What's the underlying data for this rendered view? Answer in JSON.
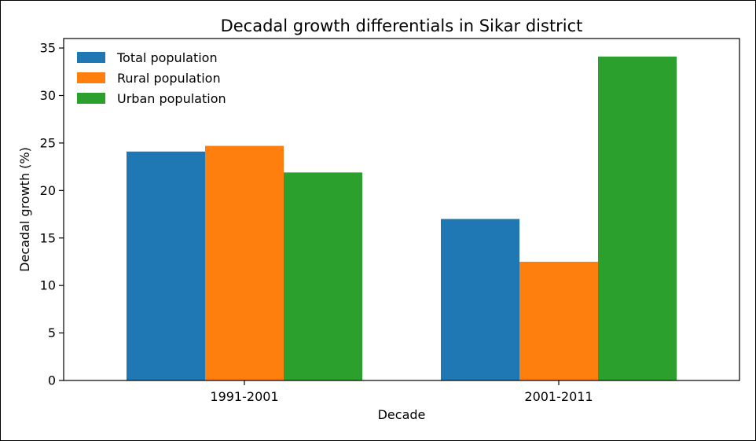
{
  "chart_data": {
    "type": "bar",
    "title": "Decadal growth differentials in Sikar district",
    "xlabel": "Decade",
    "ylabel": "Decadal growth (%)",
    "categories": [
      "1991-2001",
      "2001-2011"
    ],
    "series": [
      {
        "name": "Total population",
        "color": "#1f77b4",
        "values": [
          24.1,
          17.0
        ]
      },
      {
        "name": "Rural population",
        "color": "#ff7f0e",
        "values": [
          24.7,
          12.5
        ]
      },
      {
        "name": "Urban population",
        "color": "#2ca02c",
        "values": [
          21.9,
          34.1
        ]
      }
    ],
    "ylim": [
      0,
      36
    ],
    "yticks": [
      0,
      5,
      10,
      15,
      20,
      25,
      30,
      35
    ],
    "grid": false,
    "legend_position": "top-left"
  }
}
